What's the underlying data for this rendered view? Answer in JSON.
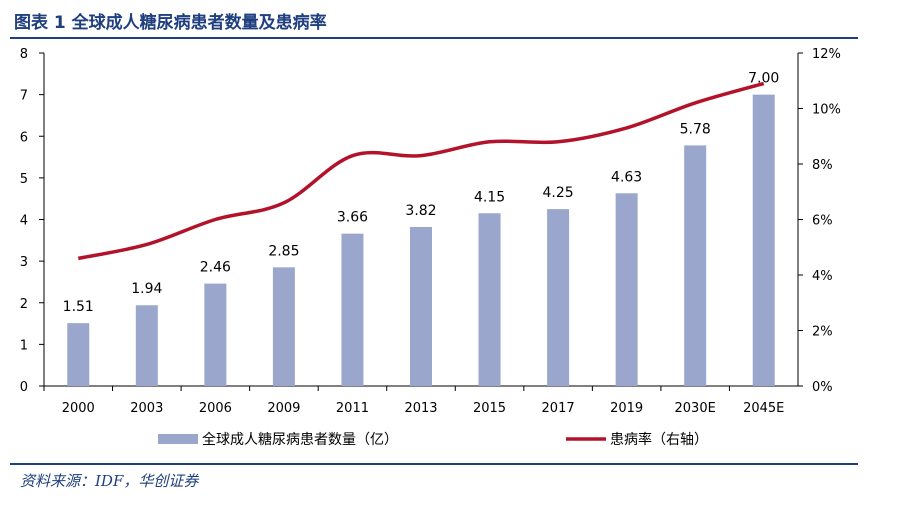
{
  "header": {
    "title": "图表 1    全球成人糖尿病患者数量及患病率"
  },
  "footer": {
    "source": "资料来源：IDF，华创证券"
  },
  "chart_data": {
    "type": "bar",
    "categories": [
      "2000",
      "2003",
      "2006",
      "2009",
      "2011",
      "2013",
      "2015",
      "2017",
      "2019",
      "2030E",
      "2045E"
    ],
    "series": [
      {
        "name": "全球成人糖尿病患者数量（亿）",
        "type": "bar",
        "axis": "left",
        "color": "#9aa6cc",
        "values": [
          1.51,
          1.94,
          2.46,
          2.85,
          3.66,
          3.82,
          4.15,
          4.25,
          4.63,
          5.78,
          7.0
        ],
        "labels": [
          "1.51",
          "1.94",
          "2.46",
          "2.85",
          "3.66",
          "3.82",
          "4.15",
          "4.25",
          "4.63",
          "5.78",
          "7.00"
        ]
      },
      {
        "name": "患病率（右轴）",
        "type": "line",
        "axis": "right",
        "color": "#b3132a",
        "values": [
          4.6,
          5.1,
          6.0,
          6.6,
          8.3,
          8.3,
          8.8,
          8.8,
          9.3,
          10.2,
          10.9
        ]
      }
    ],
    "y_left": {
      "ylim": [
        0,
        8
      ],
      "ticks": [
        "0",
        "1",
        "2",
        "3",
        "4",
        "5",
        "6",
        "7",
        "8"
      ]
    },
    "y_right": {
      "ylim": [
        0,
        12
      ],
      "ticks": [
        "0%",
        "2%",
        "4%",
        "6%",
        "8%",
        "10%",
        "12%"
      ]
    },
    "grid": false,
    "legend_position": "bottom"
  }
}
